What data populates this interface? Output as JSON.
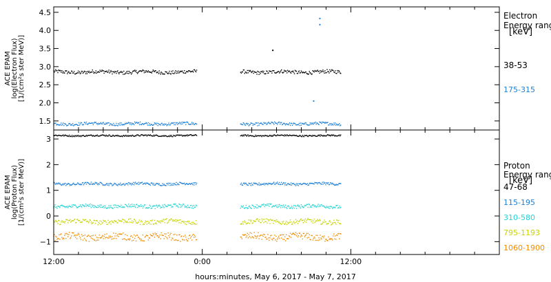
{
  "chart_data": [
    {
      "type": "scatter",
      "panel": "electron",
      "ylabel_lines": [
        "ACE EPAM",
        "log(Electron Flux)",
        "[1/(cm²s ster MeV)]"
      ],
      "ylim": [
        1.25,
        4.65
      ],
      "yticks": [
        1.5,
        2.0,
        2.5,
        3.0,
        3.5,
        4.0,
        4.5
      ],
      "ytick_labels": [
        "1.5",
        "2.0",
        "2.5",
        "3.0",
        "3.5",
        "4.0",
        "4.5"
      ],
      "legend_title_lines": [
        "Electron",
        "Energy range",
        "[keV]"
      ],
      "series": [
        {
          "name": "38-53",
          "color": "#000000",
          "base": 2.85,
          "jitter": 0.05,
          "outliers": [
            [
              29.7,
              3.45
            ]
          ]
        },
        {
          "name": "175-315",
          "color": "#1e7fd6",
          "base": 1.42,
          "jitter": 0.04,
          "outliers": [
            [
              33.5,
              4.33
            ],
            [
              33.5,
              4.16
            ],
            [
              33.0,
              2.05
            ]
          ]
        }
      ]
    },
    {
      "type": "scatter",
      "panel": "proton",
      "ylabel_lines": [
        "ACE EPAM",
        "log(Proton Flux)",
        "[1/(cm²s ster MeV)]"
      ],
      "ylim": [
        -1.5,
        3.35
      ],
      "yticks": [
        -1,
        0,
        1,
        2,
        3
      ],
      "ytick_labels": [
        "−1",
        "0",
        "1",
        "2",
        "3"
      ],
      "legend_title_lines": [
        "Proton",
        "Energy range",
        "[keV]"
      ],
      "series": [
        {
          "name": "47-68",
          "color": "#000000",
          "base": 3.13,
          "jitter": 0.03,
          "outliers": []
        },
        {
          "name": "115-195",
          "color": "#1e7fd6",
          "base": 1.25,
          "jitter": 0.05,
          "outliers": []
        },
        {
          "name": "310-580",
          "color": "#22d4d4",
          "base": 0.38,
          "jitter": 0.07,
          "outliers": []
        },
        {
          "name": "795-1193",
          "color": "#c8d400",
          "base": -0.22,
          "jitter": 0.09,
          "outliers": []
        },
        {
          "name": "1060-1900",
          "color": "#f08c00",
          "base": -0.82,
          "jitter": 0.13,
          "outliers": []
        }
      ]
    }
  ],
  "time_axis": {
    "xlabel": "hours:minutes, May  6, 2017 - May  7, 2017",
    "xlim_hours": [
      12,
      48
    ],
    "major_ticks": [
      {
        "hour": 12,
        "label": "12:00"
      },
      {
        "hour": 24,
        "label": "0:00"
      },
      {
        "hour": 36,
        "label": "12:00"
      },
      {
        "hour": 48,
        "label": ""
      }
    ],
    "minor_step_hours": 2,
    "data_segments_hours": [
      [
        12,
        23.6
      ],
      [
        27.1,
        35.2
      ]
    ]
  }
}
